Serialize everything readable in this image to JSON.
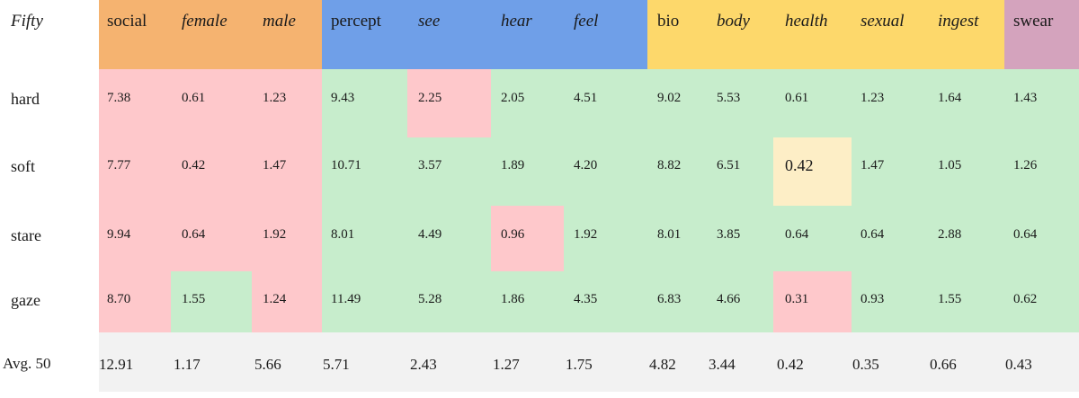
{
  "corner_label": "Fifty",
  "columns": [
    {
      "label": "social",
      "italic": false
    },
    {
      "label": "female",
      "italic": true
    },
    {
      "label": "male",
      "italic": true
    },
    {
      "label": "percept",
      "italic": false
    },
    {
      "label": "see",
      "italic": true
    },
    {
      "label": "hear",
      "italic": true
    },
    {
      "label": "feel",
      "italic": true
    },
    {
      "label": "bio",
      "italic": false
    },
    {
      "label": "body",
      "italic": true
    },
    {
      "label": "health",
      "italic": true
    },
    {
      "label": "sexual",
      "italic": true
    },
    {
      "label": "ingest",
      "italic": true
    },
    {
      "label": "swear",
      "italic": false
    }
  ],
  "groups": [
    {
      "color": "#f5b370"
    },
    {
      "color": "#6f9fe8"
    },
    {
      "color": "#fdd86b"
    },
    {
      "color": "#d4a3bd"
    }
  ],
  "rows": [
    {
      "label": "hard",
      "values": [
        "7.38",
        "0.61",
        "1.23",
        "9.43",
        "2.25",
        "2.05",
        "4.51",
        "9.02",
        "5.53",
        "0.61",
        "1.23",
        "1.64",
        "1.43"
      ]
    },
    {
      "label": "soft",
      "values": [
        "7.77",
        "0.42",
        "1.47",
        "10.71",
        "3.57",
        "1.89",
        "4.20",
        "8.82",
        "6.51",
        "0.42",
        "1.47",
        "1.05",
        "1.26"
      ]
    },
    {
      "label": "stare",
      "values": [
        "9.94",
        "0.64",
        "1.92",
        "8.01",
        "4.49",
        "0.96",
        "1.92",
        "8.01",
        "3.85",
        "0.64",
        "0.64",
        "2.88",
        "0.64"
      ]
    },
    {
      "label": "gaze",
      "values": [
        "8.70",
        "1.55",
        "1.24",
        "11.49",
        "5.28",
        "1.86",
        "4.35",
        "6.83",
        "4.66",
        "0.31",
        "0.93",
        "1.55",
        "0.62"
      ]
    }
  ],
  "average": {
    "label": "Avg. 50",
    "values": [
      "12.91",
      "1.17",
      "5.66",
      "5.71",
      "2.43",
      "1.27",
      "1.75",
      "4.82",
      "3.44",
      "0.42",
      "0.35",
      "0.66",
      "0.43"
    ]
  },
  "colors": {
    "pink": "#fec8cb",
    "green": "#c7edcc",
    "cream": "#fdeec6",
    "avg_bg": "#f2f2f2"
  }
}
